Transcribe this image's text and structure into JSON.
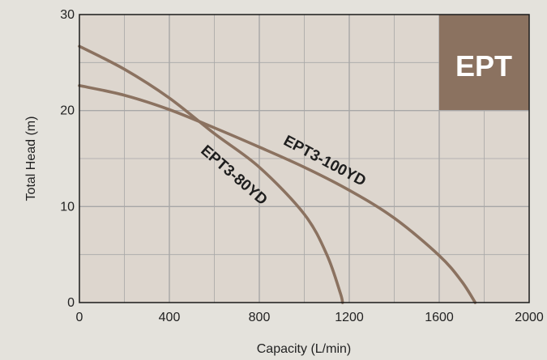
{
  "chart_data": {
    "type": "line",
    "xlabel": "Capacity (L/min)",
    "ylabel": "Total Head (m)",
    "xlim": [
      0,
      2000
    ],
    "ylim": [
      0,
      30
    ],
    "x_ticks": [
      "0",
      "400",
      "800",
      "1200",
      "1600",
      "2000"
    ],
    "y_ticks": [
      "0",
      "10",
      "20",
      "30"
    ],
    "grid": true,
    "badge": "EPT",
    "colors": {
      "background": "#e4e2dc",
      "plot": "#ddd6ce",
      "grid": "#a7a7a7",
      "curve": "#8b7260",
      "badge": "#8b7260"
    },
    "series": [
      {
        "name": "EPT3-100YD",
        "x": [
          0,
          200,
          400,
          600,
          800,
          1000,
          1200,
          1400,
          1600,
          1700,
          1760
        ],
        "y": [
          22.6,
          21.6,
          20.1,
          18.2,
          16.2,
          14.1,
          11.7,
          8.8,
          4.9,
          2.2,
          0
        ]
      },
      {
        "name": "EPT3-80YD",
        "x": [
          0,
          200,
          400,
          600,
          800,
          1000,
          1100,
          1160,
          1170
        ],
        "y": [
          26.7,
          24.3,
          21.3,
          17.6,
          14.1,
          9.2,
          5.0,
          1.0,
          0
        ]
      }
    ]
  }
}
